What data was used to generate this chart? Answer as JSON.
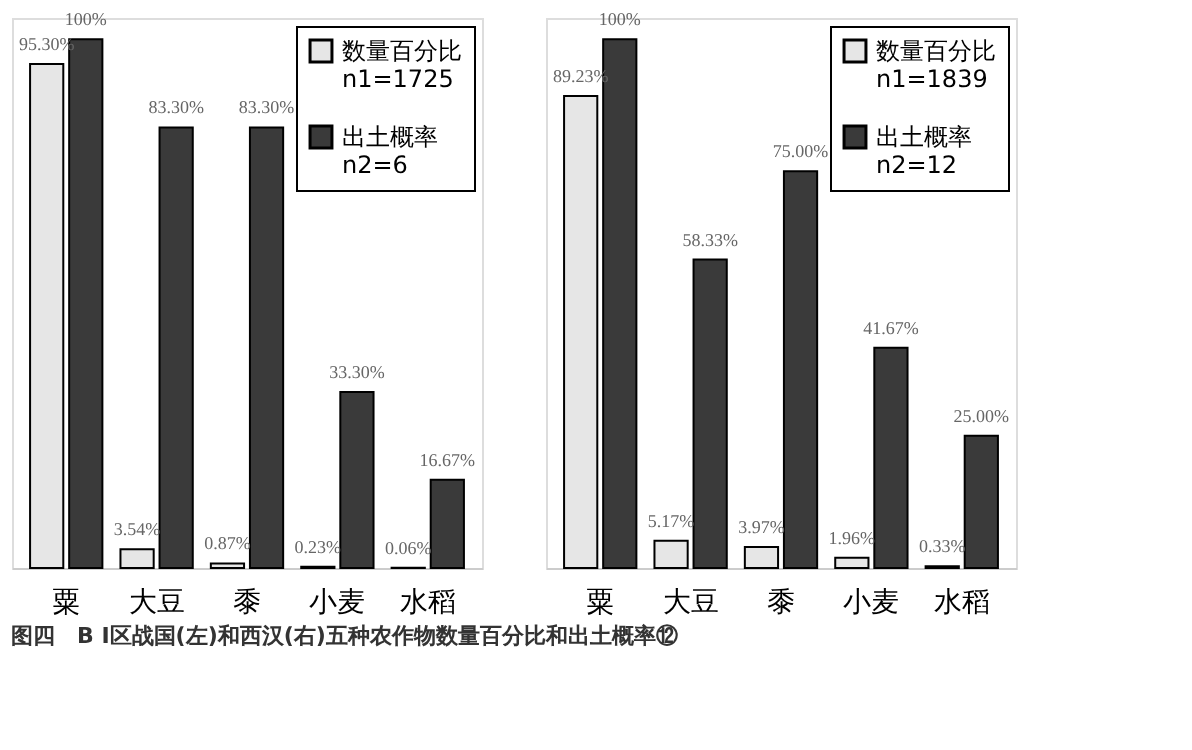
{
  "chart_data": [
    {
      "type": "bar",
      "categories": [
        "粟",
        "大豆",
        "黍",
        "小麦",
        "水稻"
      ],
      "legend": "top right",
      "grid": false,
      "data_labels": true,
      "annotations": [
        "图四　B Ⅰ区战国(左)和西汉(右)五种农作物数量百分比和出土概率⑫"
      ],
      "series": [
        {
          "name": "数量百分比\nn1=1725",
          "color": "#e6e6e6",
          "values": [
            95.3,
            3.54,
            0.87,
            0.23,
            0.06
          ],
          "value_labels": [
            "95.30%",
            "3.54%",
            "0.87%",
            "0.23%",
            "0.06%"
          ]
        },
        {
          "name": "出土概率\nn2=6",
          "color": "#3a3a3a",
          "values": [
            100,
            83.3,
            83.3,
            33.3,
            16.67
          ],
          "value_labels": [
            "100%",
            "83.30%",
            "83.30%",
            "33.30%",
            "16.67%"
          ]
        }
      ]
    },
    {
      "type": "bar",
      "categories": [
        "粟",
        "大豆",
        "黍",
        "小麦",
        "水稻"
      ],
      "legend": "top right",
      "grid": false,
      "data_labels": true,
      "series": [
        {
          "name": "数量百分比\nn1=1839",
          "color": "#e6e6e6",
          "values": [
            89.23,
            5.17,
            3.97,
            1.96,
            0.33
          ],
          "value_labels": [
            "89.23%",
            "5.17%",
            "3.97%",
            "1.96%",
            "0.33%"
          ]
        },
        {
          "name": "出土概率\nn2=12",
          "color": "#3a3a3a",
          "values": [
            100,
            58.33,
            75.0,
            41.67,
            25.0
          ],
          "value_labels": [
            "100%",
            "58.33%",
            "75.00%",
            "41.67%",
            "25.00%"
          ]
        }
      ]
    }
  ]
}
